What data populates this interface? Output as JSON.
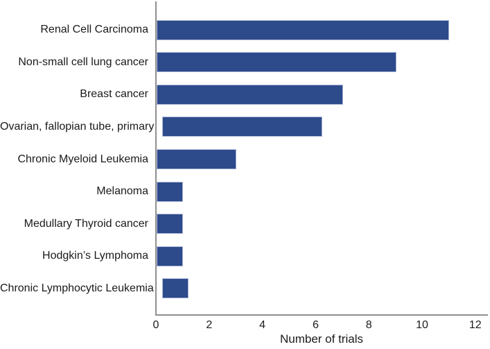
{
  "chart_data": {
    "type": "bar",
    "orientation": "horizontal",
    "title": "",
    "xlabel": "Number of trials",
    "ylabel": "",
    "categories": [
      "Renal Cell Carcinoma",
      "Non-small cell lung cancer",
      "Breast cancer",
      "Ovarian, fallopian tube, primary",
      "Chronic Myeloid Leukemia",
      "Melanoma",
      "Medullary Thyroid cancer",
      "Hodgkin’s Lymphoma",
      "Chronic Lymphocytic Leukemia"
    ],
    "values": [
      11,
      9,
      7,
      6,
      3,
      1,
      1,
      1,
      1
    ],
    "xlim": [
      0,
      12.5
    ],
    "xticks": [
      0,
      2,
      4,
      6,
      8,
      10,
      12
    ],
    "grid": false,
    "legend": null,
    "colors": {
      "bar_fill": "#2d4a8b",
      "bar_border": "#aeb9d8",
      "axis_line": "#8f8f8f",
      "text": "#1a1a1a",
      "background": "#ffffff"
    }
  }
}
